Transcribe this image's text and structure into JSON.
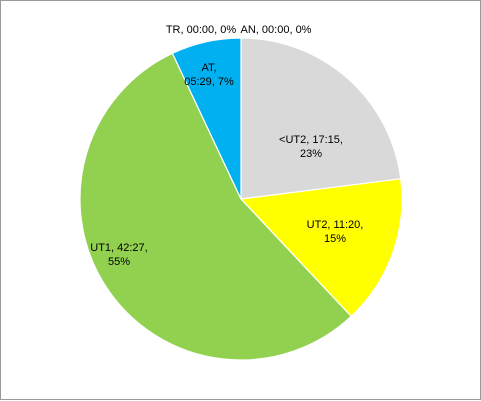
{
  "chart_data": {
    "type": "pie",
    "slices": [
      {
        "category": "AN",
        "time": "00:00",
        "percent": 0,
        "color": "#d9d9d9",
        "label_lines": [
          "AN, 00:00, 0%"
        ]
      },
      {
        "category": "<UT2",
        "time": "17:15",
        "percent": 23,
        "color": "#d9d9d9",
        "label_lines": [
          "<UT2, 17:15,",
          "23%"
        ]
      },
      {
        "category": "UT2",
        "time": "11:20",
        "percent": 15,
        "color": "#ffff00",
        "label_lines": [
          "UT2, 11:20,",
          "15%"
        ]
      },
      {
        "category": "UT1",
        "time": "42:27",
        "percent": 55,
        "color": "#92d050",
        "label_lines": [
          "UT1, 42:27,",
          "55%"
        ]
      },
      {
        "category": "AT",
        "time": "05:29",
        "percent": 7,
        "color": "#00b0f0",
        "label_lines": [
          "AT,",
          "05:29, 7%"
        ]
      },
      {
        "category": "TR",
        "time": "00:00",
        "percent": 0,
        "color": "#00b0f0",
        "label_lines": [
          "TR, 00:00, 0%"
        ]
      }
    ]
  }
}
